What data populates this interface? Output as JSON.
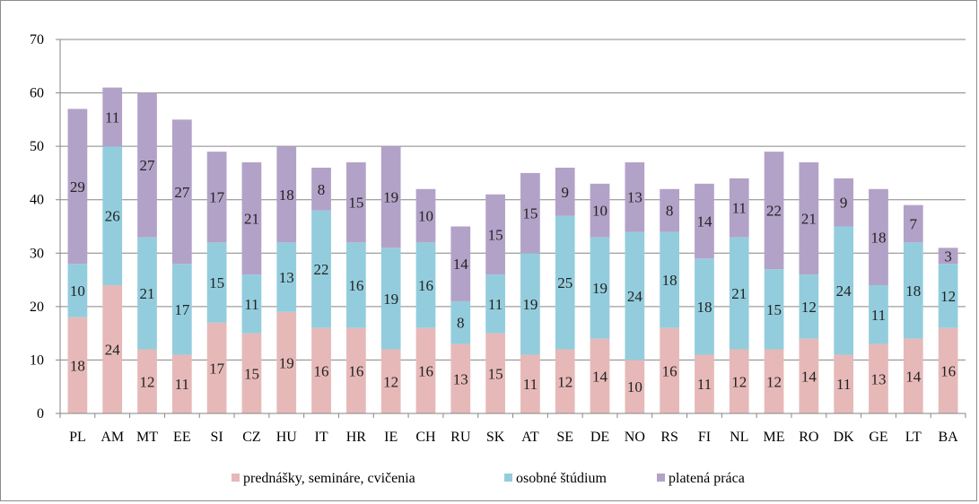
{
  "chart_data": {
    "type": "bar",
    "stacked": true,
    "title": "",
    "xlabel": "",
    "ylabel": "",
    "ylim": [
      0,
      70
    ],
    "yticks": [
      0,
      10,
      20,
      30,
      40,
      50,
      60,
      70
    ],
    "grid": true,
    "legend_position": "bottom",
    "categories": [
      "PL",
      "AM",
      "MT",
      "EE",
      "SI",
      "CZ",
      "HU",
      "IT",
      "HR",
      "IE",
      "CH",
      "RU",
      "SK",
      "AT",
      "SE",
      "DE",
      "NO",
      "RS",
      "FI",
      "NL",
      "ME",
      "RO",
      "DK",
      "GE",
      "LT",
      "BA"
    ],
    "series": [
      {
        "name": "prednášky, semináre, cvičenia",
        "color": "#e6b9b8",
        "values": [
          18,
          24,
          12,
          11,
          17,
          15,
          19,
          16,
          16,
          12,
          16,
          13,
          15,
          11,
          12,
          14,
          10,
          16,
          11,
          12,
          12,
          14,
          11,
          13,
          14,
          16
        ]
      },
      {
        "name": "osobné štúdium",
        "color": "#93cddd",
        "values": [
          10,
          26,
          21,
          17,
          15,
          11,
          13,
          22,
          16,
          19,
          16,
          8,
          11,
          19,
          25,
          19,
          24,
          18,
          18,
          21,
          15,
          12,
          24,
          11,
          18,
          12
        ]
      },
      {
        "name": "platená práca",
        "color": "#b3a2c7",
        "values": [
          29,
          11,
          27,
          27,
          17,
          21,
          18,
          8,
          15,
          19,
          10,
          14,
          15,
          15,
          9,
          10,
          13,
          8,
          14,
          11,
          22,
          21,
          9,
          18,
          7,
          3
        ]
      }
    ]
  }
}
